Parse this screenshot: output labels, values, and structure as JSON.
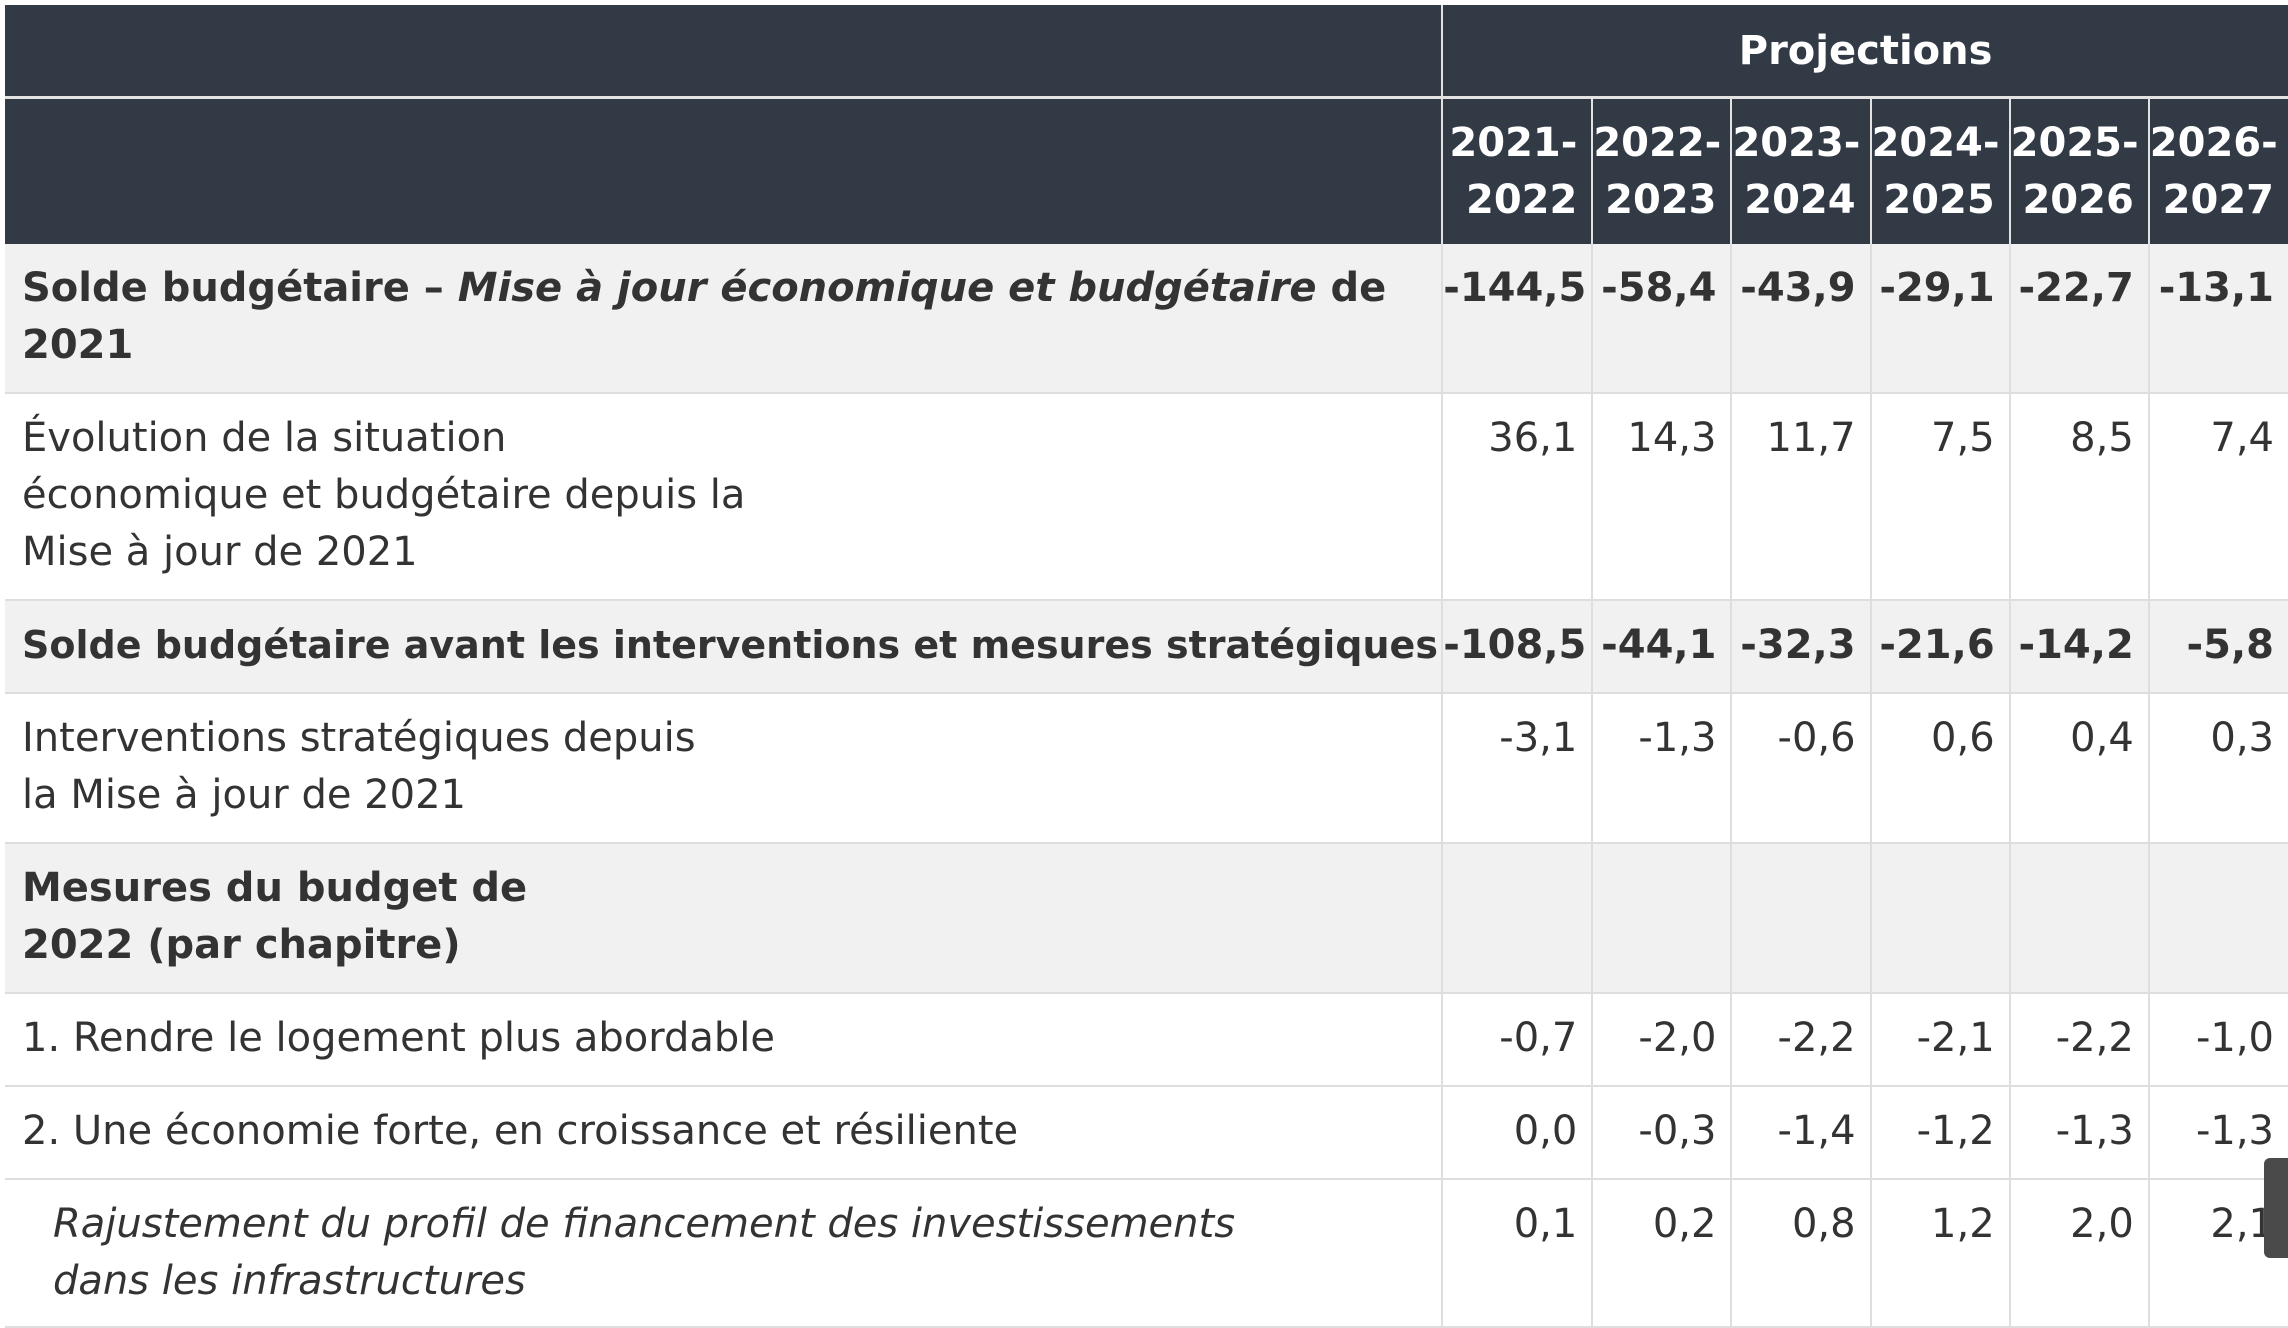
{
  "header": {
    "projections_label": "Projections",
    "years": [
      {
        "top": "2021-",
        "bottom": "2022"
      },
      {
        "top": "2022-",
        "bottom": "2023"
      },
      {
        "top": "2023-",
        "bottom": "2024"
      },
      {
        "top": "2024-",
        "bottom": "2025"
      },
      {
        "top": "2025-",
        "bottom": "2026"
      },
      {
        "top": "2026-",
        "bottom": "2027"
      }
    ]
  },
  "rows": [
    {
      "label_part1": "Solde budgétaire – ",
      "label_italic": "Mise à jour économique et budgétaire",
      "label_part2": " de 2021",
      "values": [
        "-144,5",
        "-58,4",
        "-43,9",
        "-29,1",
        "-22,7",
        "-13,1"
      ]
    },
    {
      "label": "Évolution de la situation économique et budgétaire depuis la Mise à jour de 2021",
      "values": [
        "36,1",
        "14,3",
        "11,7",
        "7,5",
        "8,5",
        "7,4"
      ]
    },
    {
      "label": "Solde budgétaire avant les interventions et mesures stratégiques",
      "values": [
        "-108,5",
        "-44,1",
        "-32,3",
        "-21,6",
        "-14,2",
        "-5,8"
      ]
    },
    {
      "label": "Interventions stratégiques depuis la Mise à jour de 2021",
      "values": [
        "-3,1",
        "-1,3",
        "-0,6",
        "0,6",
        "0,4",
        "0,3"
      ]
    },
    {
      "label": "Mesures du budget de 2022 (par chapitre)",
      "values": [
        "",
        "",
        "",
        "",
        "",
        ""
      ]
    },
    {
      "label": "1. Rendre le logement plus abordable",
      "values": [
        "-0,7",
        "-2,0",
        "-2,2",
        "-2,1",
        "-2,2",
        "-1,0"
      ]
    },
    {
      "label": "2. Une économie forte, en croissance et résiliente",
      "values": [
        "0,0",
        "-0,3",
        "-1,4",
        "-1,2",
        "-1,3",
        "-1,3"
      ]
    },
    {
      "label": "Rajustement du profil de financement des investissements dans les infrastructures",
      "values": [
        "0,1",
        "0,2",
        "0,8",
        "1,2",
        "2,0",
        "2,1"
      ]
    }
  ]
}
